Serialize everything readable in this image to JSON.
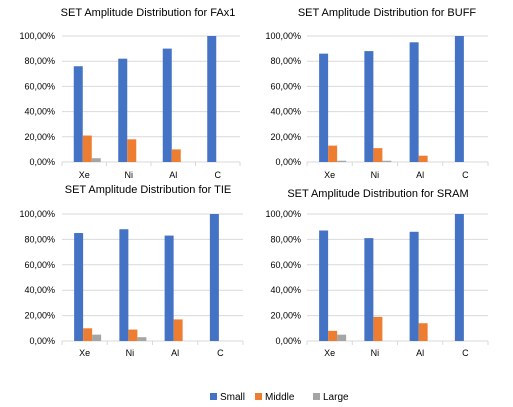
{
  "legend": [
    {
      "name": "Small",
      "color": "#4472C4"
    },
    {
      "name": "Middle",
      "color": "#ED7D31"
    },
    {
      "name": "Large",
      "color": "#A5A5A5"
    }
  ],
  "chart_data": [
    {
      "type": "bar",
      "title": "SET Amplitude Distribution for FAx1",
      "categories": [
        "Xe",
        "Ni",
        "Al",
        "C"
      ],
      "series": [
        {
          "name": "Small",
          "values": [
            76,
            82,
            90,
            100
          ]
        },
        {
          "name": "Middle",
          "values": [
            21,
            18,
            10,
            0
          ]
        },
        {
          "name": "Large",
          "values": [
            3,
            0,
            0,
            0
          ]
        }
      ],
      "ylim": [
        0,
        100
      ],
      "yticks": [
        "0,00%",
        "20,00%",
        "40,00%",
        "60,00%",
        "80,00%",
        "100,00%"
      ],
      "grid": true
    },
    {
      "type": "bar",
      "title": "SET Amplitude Distribution for BUFF",
      "categories": [
        "Xe",
        "Ni",
        "Al",
        "C"
      ],
      "series": [
        {
          "name": "Small",
          "values": [
            86,
            88,
            95,
            100
          ]
        },
        {
          "name": "Middle",
          "values": [
            13,
            11,
            5,
            0
          ]
        },
        {
          "name": "Large",
          "values": [
            1,
            1,
            0,
            0
          ]
        }
      ],
      "ylim": [
        0,
        100
      ],
      "yticks": [
        "0,00%",
        "20,00%",
        "40,00%",
        "60,00%",
        "80,00%",
        "100,00%"
      ],
      "grid": true
    },
    {
      "type": "bar",
      "title": "SET Amplitude Distribution for TIE",
      "categories": [
        "Xe",
        "Ni",
        "Al",
        "C"
      ],
      "series": [
        {
          "name": "Small",
          "values": [
            85,
            88,
            83,
            100
          ]
        },
        {
          "name": "Middle",
          "values": [
            10,
            9,
            17,
            0
          ]
        },
        {
          "name": "Large",
          "values": [
            5,
            3,
            0,
            0
          ]
        }
      ],
      "ylim": [
        0,
        100
      ],
      "yticks": [
        "0,00%",
        "20,00%",
        "40,00%",
        "60,00%",
        "80,00%",
        "100,00%"
      ],
      "grid": true
    },
    {
      "type": "bar",
      "title": "SET Amplitude Distribution for SRAM",
      "categories": [
        "Xe",
        "Ni",
        "Al",
        "C"
      ],
      "series": [
        {
          "name": "Small",
          "values": [
            87,
            81,
            86,
            100
          ]
        },
        {
          "name": "Middle",
          "values": [
            8,
            19,
            14,
            0
          ]
        },
        {
          "name": "Large",
          "values": [
            5,
            0,
            0,
            0
          ]
        }
      ],
      "ylim": [
        0,
        100
      ],
      "yticks": [
        "0,00%",
        "20,00%",
        "40,00%",
        "60,00%",
        "80,00%",
        "100,00%"
      ],
      "grid": true
    }
  ]
}
